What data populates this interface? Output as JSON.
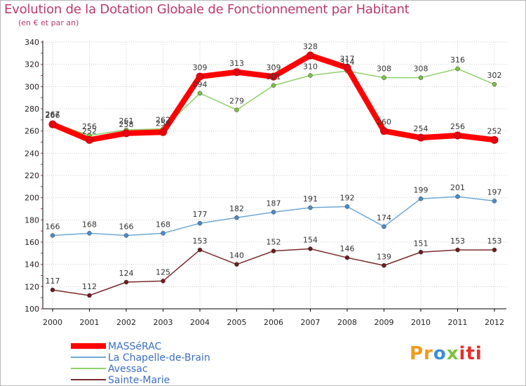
{
  "title": "Evolution de la Dotation Globale de Fonctionnement par Habitant",
  "subtitle": "(en € et par an)",
  "logo": [
    "Pr",
    "o",
    "x",
    "iti"
  ],
  "colors": {
    "title": "#bb3a6e",
    "grid": "#cccccc",
    "axis": "#000000",
    "tick_mark": "#cc3366"
  },
  "chart_data": {
    "type": "line",
    "title": "Evolution de la Dotation Globale de Fonctionnement par Habitant",
    "subtitle": "(en € et par an)",
    "xlabel": "",
    "ylabel": "",
    "ylim": [
      100,
      340
    ],
    "yticks": [
      100,
      120,
      140,
      160,
      180,
      200,
      220,
      240,
      260,
      280,
      300,
      320,
      340
    ],
    "grid": true,
    "legend_position": "bottom-left",
    "categories": [
      "2000",
      "2001",
      "2002",
      "2003",
      "2004",
      "2005",
      "2006",
      "2007",
      "2008",
      "2009",
      "2010",
      "2011",
      "2012"
    ],
    "series": [
      {
        "name": "Avessac",
        "color": "#8fd16a",
        "marker": "#7cc142",
        "values": [
          267,
          256,
          261,
          262,
          294,
          279,
          301,
          310,
          314,
          308,
          308,
          316,
          302
        ]
      },
      {
        "name": "MASSéRAC",
        "color": "#ff0000",
        "marker": "#e30613",
        "values": [
          266,
          252,
          258,
          259,
          309,
          313,
          309,
          328,
          317,
          260,
          254,
          256,
          252
        ]
      },
      {
        "name": "La Chapelle-de-Brain",
        "color": "#6fa8d6",
        "marker": "#4a8cc8",
        "values": [
          166,
          168,
          166,
          168,
          177,
          182,
          187,
          191,
          192,
          174,
          199,
          201,
          197
        ]
      },
      {
        "name": "Sainte-Marie",
        "color": "#7a2a2a",
        "marker": "#6b1d1d",
        "values": [
          117,
          112,
          124,
          125,
          153,
          140,
          152,
          154,
          146,
          139,
          151,
          153,
          153
        ]
      }
    ],
    "legend_order": [
      "MASSéRAC",
      "La Chapelle-de-Brain",
      "Avessac",
      "Sainte-Marie"
    ]
  }
}
